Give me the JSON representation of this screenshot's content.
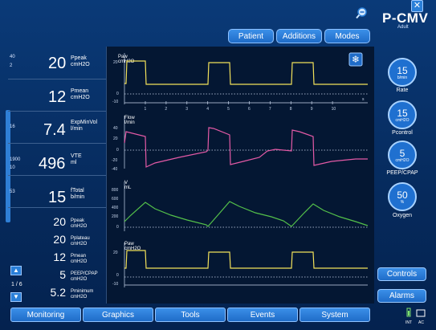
{
  "header": {
    "mode_title": "P-CMV",
    "mode_subtitle": "Adult",
    "tabs": [
      "Patient",
      "Additions",
      "Modes"
    ]
  },
  "left_params": [
    {
      "lim_hi": "40",
      "lim_lo": "2",
      "value": "20",
      "label1": "Ppeak",
      "label2": "cmH2O"
    },
    {
      "lim_hi": "",
      "lim_lo": "",
      "value": "12",
      "label1": "Pmean",
      "label2": "cmH2O"
    },
    {
      "lim_hi": "16",
      "lim_lo": "",
      "value": "7.4",
      "label1": "ExpMinVol",
      "label2": "l/min"
    },
    {
      "lim_hi": "1900",
      "lim_lo": "10",
      "value": "496",
      "label1": "VTE",
      "label2": "ml"
    },
    {
      "lim_hi": "53",
      "lim_lo": "",
      "value": "15",
      "label1": "fTotal",
      "label2": "b/min"
    }
  ],
  "small_params": [
    {
      "value": "20",
      "label1": "Ppeak",
      "label2": "cmH2O"
    },
    {
      "value": "20",
      "label1": "Pplateau",
      "label2": "cmH2O"
    },
    {
      "value": "12",
      "label1": "Pmean",
      "label2": "cmH2O"
    },
    {
      "value": "5",
      "label1": "PEEP/CPAP",
      "label2": "cmH2O"
    },
    {
      "value": "5.2",
      "label1": "Pminimum",
      "label2": "cmH2O"
    }
  ],
  "page_indicator": "1 / 6",
  "graphs": {
    "paw_label1": "Paw",
    "paw_label2": "cmH2O",
    "paw_ticks": [
      "20",
      "0",
      "-10"
    ],
    "time_ticks": [
      "1",
      "2",
      "3",
      "4",
      "5",
      "6",
      "7",
      "8",
      "9",
      "10"
    ],
    "time_unit": "s",
    "flow_label1": "Flow",
    "flow_label2": "l/min",
    "flow_ticks": [
      "40",
      "20",
      "0",
      "-20",
      "-40"
    ],
    "vol_label1": "V",
    "vol_label2": "mL",
    "vol_ticks": [
      "800",
      "600",
      "400",
      "200",
      "0"
    ],
    "paw2_label1": "Paw",
    "paw2_label2": "cmH2O",
    "paw2_ticks": [
      "20",
      "0",
      "-10"
    ],
    "colors": {
      "pressure": "#f2e15a",
      "flow": "#e45aa6",
      "volume": "#54c04a"
    }
  },
  "right_controls": [
    {
      "value": "15",
      "unit": "b/min",
      "label": "Rate"
    },
    {
      "value": "15",
      "unit": "cmH2O",
      "label": "Pcontrol"
    },
    {
      "value": "5",
      "unit": "cmH2O",
      "label": "PEEP/CPAP"
    },
    {
      "value": "50",
      "unit": "%",
      "label": "Oxygen"
    }
  ],
  "buttons": {
    "controls": "Controls",
    "alarms": "Alarms"
  },
  "bottom_tabs": [
    "Monitoring",
    "Graphics",
    "Tools",
    "Events",
    "System"
  ],
  "status": {
    "int": "INT",
    "ac": "AC"
  }
}
